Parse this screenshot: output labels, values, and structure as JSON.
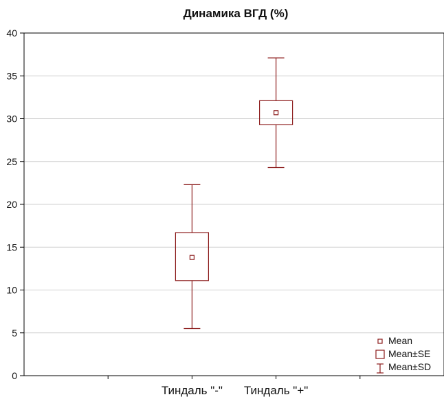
{
  "chart_data": {
    "type": "box",
    "title": "Динамика ВГД (%)",
    "xlabel": "",
    "ylabel": "",
    "ylim": [
      0,
      40
    ],
    "yticks": [
      0,
      5,
      10,
      15,
      20,
      25,
      30,
      35,
      40
    ],
    "grid": true,
    "categories": [
      "Тиндаль \"-\"",
      "Тиндаль \"+\""
    ],
    "series": [
      {
        "mean": [
          13.8,
          30.7
        ],
        "se_low": [
          11.1,
          29.3
        ],
        "se_high": [
          16.7,
          32.1
        ],
        "sd_low": [
          5.5,
          24.3
        ],
        "sd_high": [
          22.3,
          37.1
        ]
      }
    ],
    "legend": {
      "position": "bottom-right",
      "items": [
        {
          "symbol": "mean",
          "label": "Mean"
        },
        {
          "symbol": "se",
          "label": "Mean±SE"
        },
        {
          "symbol": "sd",
          "label": "Mean±SD"
        }
      ]
    },
    "color": "#8b1a1a"
  }
}
